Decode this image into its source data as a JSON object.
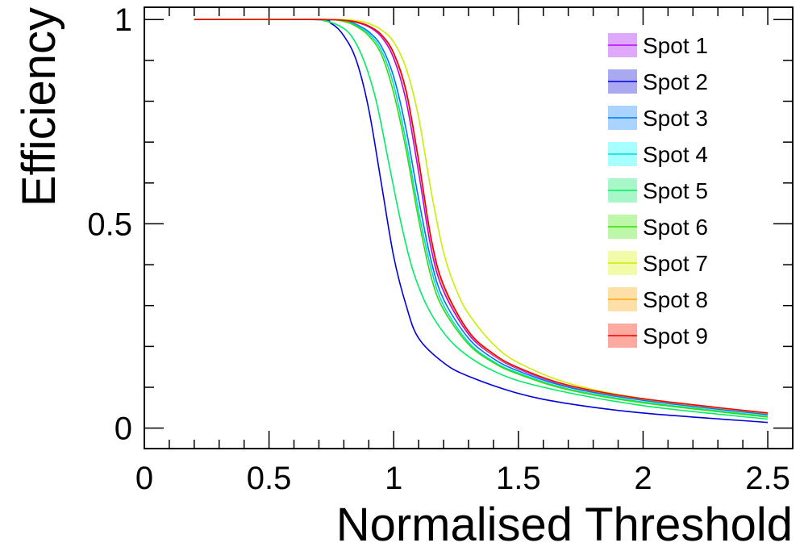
{
  "chart_data": {
    "type": "line",
    "title": "",
    "xlabel": "Normalised Threshold",
    "ylabel": "Efficiency",
    "xlim": [
      0,
      2.6
    ],
    "ylim": [
      -0.05,
      1.03
    ],
    "x_ticks": [
      {
        "value": 0,
        "label": "0"
      },
      {
        "value": 0.5,
        "label": "0.5"
      },
      {
        "value": 1,
        "label": "1"
      },
      {
        "value": 1.5,
        "label": "1.5"
      },
      {
        "value": 2,
        "label": "2"
      },
      {
        "value": 2.5,
        "label": "2.5"
      }
    ],
    "y_ticks": [
      {
        "value": 0,
        "label": "0"
      },
      {
        "value": 0.5,
        "label": "0.5"
      },
      {
        "value": 1,
        "label": "1"
      }
    ],
    "legend_position": "top-right",
    "series": [
      {
        "name": "Spot 1",
        "color": "#bb00ff",
        "band_color": "#dfa8ff",
        "points": [
          [
            0.2,
            1.0
          ],
          [
            0.7,
            1.0
          ],
          [
            0.8,
            0.998
          ],
          [
            0.85,
            0.993
          ],
          [
            0.9,
            0.982
          ],
          [
            0.95,
            0.958
          ],
          [
            1.0,
            0.905
          ],
          [
            1.05,
            0.8
          ],
          [
            1.1,
            0.625
          ],
          [
            1.15,
            0.44
          ],
          [
            1.2,
            0.335
          ],
          [
            1.3,
            0.23
          ],
          [
            1.4,
            0.178
          ],
          [
            1.5,
            0.145
          ],
          [
            1.7,
            0.103
          ],
          [
            2.0,
            0.07
          ],
          [
            2.5,
            0.035
          ]
        ]
      },
      {
        "name": "Spot 2",
        "color": "#0000dd",
        "band_color": "#a9a9f2",
        "points": [
          [
            0.2,
            1.0
          ],
          [
            0.68,
            1.0
          ],
          [
            0.75,
            0.99
          ],
          [
            0.8,
            0.96
          ],
          [
            0.85,
            0.9
          ],
          [
            0.9,
            0.78
          ],
          [
            0.95,
            0.6
          ],
          [
            1.0,
            0.42
          ],
          [
            1.05,
            0.3
          ],
          [
            1.1,
            0.22
          ],
          [
            1.2,
            0.16
          ],
          [
            1.3,
            0.127
          ],
          [
            1.5,
            0.085
          ],
          [
            1.7,
            0.06
          ],
          [
            2.0,
            0.037
          ],
          [
            2.5,
            0.014
          ]
        ]
      },
      {
        "name": "Spot 3",
        "color": "#0077ee",
        "band_color": "#a8d4ff",
        "points": [
          [
            0.2,
            1.0
          ],
          [
            0.7,
            1.0
          ],
          [
            0.8,
            0.997
          ],
          [
            0.85,
            0.988
          ],
          [
            0.9,
            0.97
          ],
          [
            0.95,
            0.935
          ],
          [
            1.0,
            0.86
          ],
          [
            1.05,
            0.73
          ],
          [
            1.1,
            0.56
          ],
          [
            1.15,
            0.41
          ],
          [
            1.2,
            0.315
          ],
          [
            1.3,
            0.22
          ],
          [
            1.4,
            0.17
          ],
          [
            1.5,
            0.14
          ],
          [
            1.7,
            0.1
          ],
          [
            2.0,
            0.068
          ],
          [
            2.5,
            0.033
          ]
        ]
      },
      {
        "name": "Spot 4",
        "color": "#00dddd",
        "band_color": "#a8ffff",
        "points": [
          [
            0.2,
            1.0
          ],
          [
            0.7,
            1.0
          ],
          [
            0.8,
            0.996
          ],
          [
            0.85,
            0.985
          ],
          [
            0.9,
            0.965
          ],
          [
            0.95,
            0.925
          ],
          [
            1.0,
            0.84
          ],
          [
            1.05,
            0.7
          ],
          [
            1.1,
            0.53
          ],
          [
            1.15,
            0.39
          ],
          [
            1.2,
            0.3
          ],
          [
            1.3,
            0.21
          ],
          [
            1.4,
            0.163
          ],
          [
            1.5,
            0.135
          ],
          [
            1.7,
            0.096
          ],
          [
            2.0,
            0.064
          ],
          [
            2.5,
            0.029
          ]
        ]
      },
      {
        "name": "Spot 5",
        "color": "#00ee66",
        "band_color": "#a8f7c8",
        "points": [
          [
            0.2,
            1.0
          ],
          [
            0.65,
            1.0
          ],
          [
            0.72,
            0.997
          ],
          [
            0.78,
            0.985
          ],
          [
            0.83,
            0.96
          ],
          [
            0.88,
            0.9
          ],
          [
            0.93,
            0.8
          ],
          [
            0.98,
            0.65
          ],
          [
            1.03,
            0.5
          ],
          [
            1.08,
            0.38
          ],
          [
            1.15,
            0.28
          ],
          [
            1.25,
            0.2
          ],
          [
            1.4,
            0.14
          ],
          [
            1.6,
            0.1
          ],
          [
            2.0,
            0.055
          ],
          [
            2.5,
            0.022
          ]
        ]
      },
      {
        "name": "Spot 6",
        "color": "#33dd00",
        "band_color": "#bdf7a8",
        "points": [
          [
            0.2,
            1.0
          ],
          [
            0.7,
            1.0
          ],
          [
            0.8,
            0.995
          ],
          [
            0.85,
            0.983
          ],
          [
            0.9,
            0.96
          ],
          [
            0.95,
            0.915
          ],
          [
            1.0,
            0.82
          ],
          [
            1.05,
            0.68
          ],
          [
            1.1,
            0.51
          ],
          [
            1.15,
            0.37
          ],
          [
            1.2,
            0.29
          ],
          [
            1.3,
            0.205
          ],
          [
            1.4,
            0.16
          ],
          [
            1.5,
            0.132
          ],
          [
            1.7,
            0.094
          ],
          [
            2.0,
            0.062
          ],
          [
            2.5,
            0.027
          ]
        ]
      },
      {
        "name": "Spot 7",
        "color": "#ccee00",
        "band_color": "#f2fca8",
        "points": [
          [
            0.2,
            1.0
          ],
          [
            0.75,
            1.0
          ],
          [
            0.85,
            0.997
          ],
          [
            0.9,
            0.99
          ],
          [
            0.95,
            0.975
          ],
          [
            1.0,
            0.945
          ],
          [
            1.05,
            0.88
          ],
          [
            1.1,
            0.76
          ],
          [
            1.15,
            0.58
          ],
          [
            1.2,
            0.43
          ],
          [
            1.25,
            0.34
          ],
          [
            1.3,
            0.28
          ],
          [
            1.4,
            0.205
          ],
          [
            1.5,
            0.16
          ],
          [
            1.7,
            0.11
          ],
          [
            2.0,
            0.072
          ],
          [
            2.5,
            0.036
          ]
        ]
      },
      {
        "name": "Spot 8",
        "color": "#ffaa00",
        "band_color": "#ffdfa8",
        "points": [
          [
            0.2,
            1.0
          ],
          [
            0.7,
            1.0
          ],
          [
            0.8,
            0.998
          ],
          [
            0.85,
            0.994
          ],
          [
            0.9,
            0.984
          ],
          [
            0.95,
            0.962
          ],
          [
            1.0,
            0.915
          ],
          [
            1.05,
            0.82
          ],
          [
            1.1,
            0.65
          ],
          [
            1.15,
            0.46
          ],
          [
            1.2,
            0.345
          ],
          [
            1.3,
            0.235
          ],
          [
            1.4,
            0.18
          ],
          [
            1.5,
            0.147
          ],
          [
            1.7,
            0.104
          ],
          [
            2.0,
            0.071
          ],
          [
            2.5,
            0.036
          ]
        ]
      },
      {
        "name": "Spot 9",
        "color": "#ee0000",
        "band_color": "#ffaaa0",
        "points": [
          [
            0.2,
            1.0
          ],
          [
            0.7,
            1.0
          ],
          [
            0.8,
            0.998
          ],
          [
            0.85,
            0.994
          ],
          [
            0.9,
            0.984
          ],
          [
            0.95,
            0.963
          ],
          [
            1.0,
            0.918
          ],
          [
            1.05,
            0.825
          ],
          [
            1.1,
            0.655
          ],
          [
            1.15,
            0.465
          ],
          [
            1.2,
            0.35
          ],
          [
            1.3,
            0.237
          ],
          [
            1.4,
            0.182
          ],
          [
            1.5,
            0.148
          ],
          [
            1.7,
            0.105
          ],
          [
            2.0,
            0.072
          ],
          [
            2.5,
            0.037
          ]
        ]
      }
    ]
  }
}
